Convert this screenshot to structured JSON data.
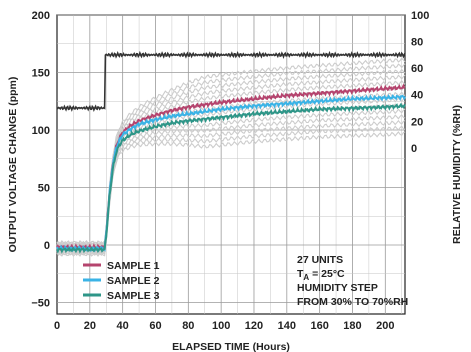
{
  "chart_data": {
    "type": "line",
    "xlabel": "ELAPSED TIME (Hours)",
    "ylabel": "OUTPUT VOLTAGE CHANGE (ppm)",
    "y2label": "RELATIVE HUMIDITY (%RH)",
    "xlim": [
      0,
      212
    ],
    "ylim": [
      -60,
      200
    ],
    "y2lim": [
      -125,
      100
    ],
    "grid": true,
    "x_ticks": [
      "0",
      "20",
      "40",
      "60",
      "80",
      "100",
      "120",
      "140",
      "160",
      "180",
      "200"
    ],
    "y_ticks": [
      "200",
      "150",
      "100",
      "50",
      "0",
      "−50"
    ],
    "y2_ticks": [
      "100",
      "80",
      "60",
      "40",
      "20",
      "0"
    ],
    "legend_placement": "bottom-left",
    "annotation": {
      "line1": "27 UNITS",
      "line2_prefix": "T",
      "line2_sub": "A",
      "line2_rest": " = 25°C",
      "line3": "HUMIDITY STEP",
      "line4": "FROM 30% TO 70%RH"
    },
    "series": [
      {
        "name": "SAMPLE 1",
        "color": "#b5446e",
        "x": [
          0,
          29,
          30,
          32,
          34,
          36,
          38,
          40,
          45,
          50,
          60,
          70,
          80,
          100,
          120,
          140,
          160,
          180,
          200,
          212
        ],
        "y": [
          -2,
          -2,
          10,
          45,
          70,
          85,
          93,
          98,
          104,
          108,
          113,
          117,
          120,
          124,
          127,
          130,
          132,
          134,
          136,
          137
        ]
      },
      {
        "name": "SAMPLE 2",
        "color": "#3ab3e6",
        "x": [
          0,
          29,
          30,
          32,
          34,
          36,
          38,
          40,
          45,
          50,
          60,
          70,
          80,
          100,
          120,
          140,
          160,
          180,
          200,
          212
        ],
        "y": [
          -3,
          -3,
          10,
          45,
          70,
          84,
          91,
          96,
          101,
          105,
          109,
          112,
          114,
          118,
          121,
          123,
          125,
          127,
          128,
          129
        ]
      },
      {
        "name": "SAMPLE 3",
        "color": "#2e9688",
        "x": [
          0,
          29,
          30,
          32,
          34,
          36,
          38,
          40,
          45,
          50,
          60,
          70,
          80,
          100,
          120,
          140,
          160,
          180,
          200,
          212
        ],
        "y": [
          -4,
          -4,
          8,
          42,
          66,
          80,
          87,
          91,
          96,
          99,
          103,
          106,
          108,
          111,
          114,
          116,
          118,
          119,
          120,
          121
        ]
      }
    ],
    "humidity_series": {
      "color": "#333333",
      "x": [
        0,
        29,
        29.5,
        212
      ],
      "y": [
        30,
        30,
        70,
        70
      ]
    },
    "band_color": "#cccccc"
  }
}
